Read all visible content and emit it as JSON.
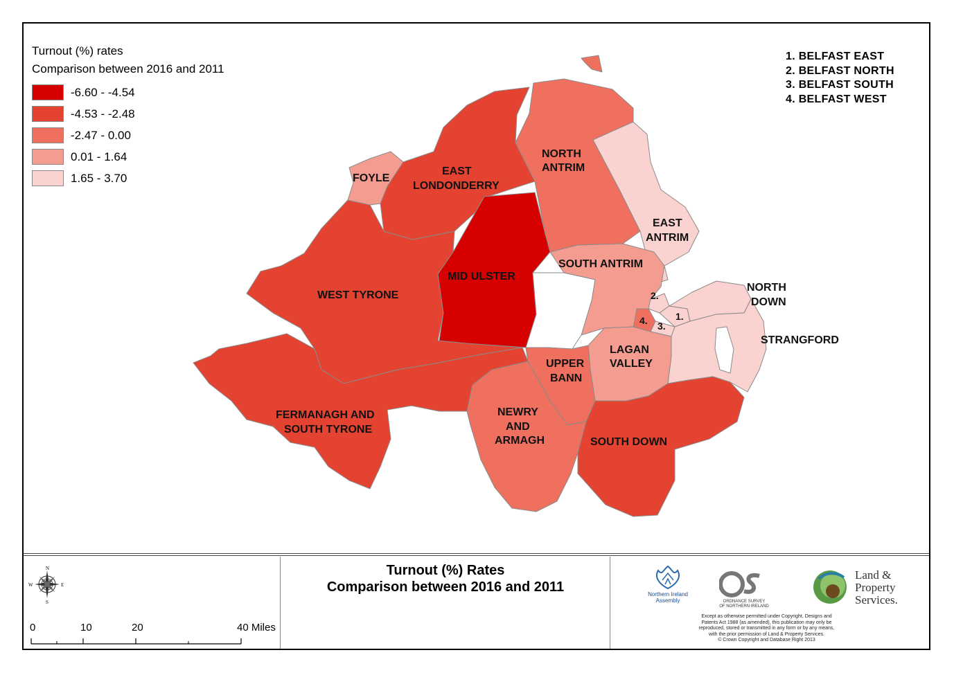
{
  "legend": {
    "title": "Turnout (%) rates",
    "subtitle": "Comparison between 2016 and 2011",
    "items": [
      {
        "label": "-6.60 - -4.54",
        "color": "#d60000"
      },
      {
        "label": "-4.53 - -2.48",
        "color": "#e44331"
      },
      {
        "label": "-2.47 - 0.00",
        "color": "#ef705e"
      },
      {
        "label": "0.01 - 1.64",
        "color": "#f49c90"
      },
      {
        "label": "1.65 - 3.70",
        "color": "#fad2d0"
      }
    ]
  },
  "belfast_key": [
    "1. BELFAST EAST",
    "2. BELFAST NORTH",
    "3. BELFAST SOUTH",
    "4. BELFAST WEST"
  ],
  "regions": {
    "foyle": "FOYLE",
    "east_londonderry_1": "EAST",
    "east_londonderry_2": "LONDONDERRY",
    "north_antrim_1": "NORTH",
    "north_antrim_2": "ANTRIM",
    "east_antrim_1": "EAST",
    "east_antrim_2": "ANTRIM",
    "south_antrim": "SOUTH ANTRIM",
    "mid_ulster": "MID ULSTER",
    "west_tyrone": "WEST TYRONE",
    "north_down_1": "NORTH",
    "north_down_2": "DOWN",
    "strangford": "STRANGFORD",
    "lagan_valley_1": "LAGAN",
    "lagan_valley_2": "VALLEY",
    "upper_bann_1": "UPPER",
    "upper_bann_2": "BANN",
    "fermanagh_1": "FERMANAGH AND",
    "fermanagh_2": "SOUTH TYRONE",
    "newry_1": "NEWRY",
    "newry_2": "AND",
    "newry_3": "ARMAGH",
    "south_down": "SOUTH DOWN",
    "belfast_1": "1.",
    "belfast_2": "2.",
    "belfast_3": "3.",
    "belfast_4": "4."
  },
  "footer": {
    "title_line1": "Turnout (%) Rates",
    "title_line2": "Comparison between 2016 and 2011",
    "compass": {
      "n": "N",
      "s": "S",
      "e": "E",
      "w": "W"
    },
    "scale": [
      "0",
      "10",
      "20",
      "40 Miles"
    ],
    "nia_line1": "Northern Ireland",
    "nia_line2": "Assembly",
    "osni_line1": "ORDNANCE SURVEY",
    "osni_line2": "OF NORTHERN IRELAND",
    "lps_line1": "Land &",
    "lps_line2": "Property",
    "lps_line3": "Services.",
    "copyright": [
      "Except as otherwise permitted under Copyright, Designs and",
      "Patents Act 1988 (as amended), this publication may only be",
      "reproduced, stored or transmitted in any form or by any means,",
      "with the prior permission of Land & Property Services.",
      "© Crown Copyright and Database Right 2013"
    ]
  }
}
